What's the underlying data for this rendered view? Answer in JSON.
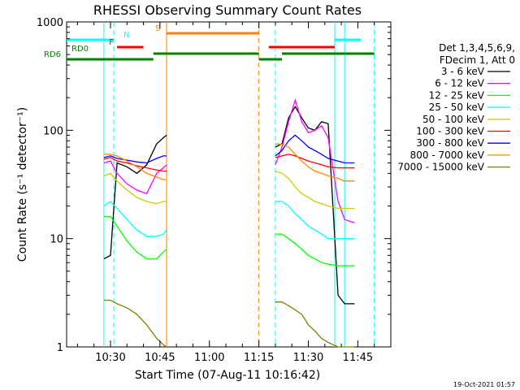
{
  "chart_data": {
    "type": "line",
    "title": "RHESSI Observing Summary Count Rates",
    "xlabel": "Start Time (07-Aug-11 10:16:42)",
    "ylabel": "Count Rate (s⁻¹ detector⁻¹)",
    "y_scale": "log",
    "ylim": [
      1,
      1000
    ],
    "xlim": [
      "10:16:42",
      "11:55:00"
    ],
    "x_ticks": [
      "10:30",
      "10:45",
      "11:00",
      "11:15",
      "11:30",
      "11:45"
    ],
    "y_ticks": [
      "1",
      "10",
      "100",
      "1000"
    ],
    "grid": false,
    "legend_position": "right",
    "legend_header": [
      "Det 1,3,4,5,6,9,",
      "FDecim 1, Att 0"
    ],
    "footer_date": "19-Oct-2021 01:57",
    "series": [
      {
        "name": "3 - 6 keV",
        "color": "#000000",
        "x": [
          "10:28",
          "10:30",
          "10:32",
          "10:35",
          "10:38",
          "10:41",
          "10:44",
          "10:46",
          "10:47",
          "11:20",
          "11:22",
          "11:24",
          "11:26",
          "11:28",
          "11:30",
          "11:32",
          "11:34",
          "11:36",
          "11:39",
          "11:41",
          "11:44"
        ],
        "y": [
          6.5,
          7,
          50,
          46,
          40,
          48,
          75,
          85,
          90,
          70,
          75,
          130,
          165,
          130,
          105,
          100,
          120,
          115,
          3.0,
          2.5,
          2.5
        ]
      },
      {
        "name": "6 - 12 keV",
        "color": "#ff00ff",
        "x": [
          "10:28",
          "10:30",
          "10:32",
          "10:35",
          "10:38",
          "10:41",
          "10:44",
          "10:46",
          "10:47",
          "11:20",
          "11:22",
          "11:24",
          "11:26",
          "11:28",
          "11:30",
          "11:32",
          "11:34",
          "11:36",
          "11:39",
          "11:41",
          "11:44"
        ],
        "y": [
          50,
          52,
          40,
          32,
          28,
          26,
          40,
          45,
          48,
          48,
          70,
          120,
          190,
          120,
          95,
          100,
          110,
          85,
          22,
          15,
          14
        ]
      },
      {
        "name": "12 - 25 keV",
        "color": "#00ff00",
        "x": [
          "10:28",
          "10:30",
          "10:32",
          "10:35",
          "10:38",
          "10:41",
          "10:44",
          "10:46",
          "10:47",
          "11:20",
          "11:22",
          "11:24",
          "11:26",
          "11:28",
          "11:30",
          "11:32",
          "11:34",
          "11:36",
          "11:39",
          "11:41",
          "11:44"
        ],
        "y": [
          16,
          16,
          13,
          9.5,
          7.5,
          6.5,
          6.5,
          7.5,
          8,
          11,
          11,
          10,
          9,
          8,
          7,
          6.5,
          6,
          5.8,
          5.6,
          5.6,
          5.6
        ]
      },
      {
        "name": "25 - 50 keV",
        "color": "#00ffff",
        "x": [
          "10:28",
          "10:30",
          "10:32",
          "10:35",
          "10:38",
          "10:41",
          "10:44",
          "10:46",
          "10:47",
          "11:20",
          "11:22",
          "11:24",
          "11:26",
          "11:28",
          "11:30",
          "11:32",
          "11:34",
          "11:36",
          "11:39",
          "11:41",
          "11:44"
        ],
        "y": [
          20,
          22,
          19,
          15,
          12,
          10.5,
          10.5,
          11,
          12,
          22,
          22,
          20,
          17,
          15,
          13,
          12,
          11,
          10,
          10,
          10,
          10
        ]
      },
      {
        "name": "50 - 100 keV",
        "color": "#cccc00",
        "x": [
          "10:28",
          "10:30",
          "10:32",
          "10:35",
          "10:38",
          "10:41",
          "10:44",
          "10:46",
          "10:47",
          "11:20",
          "11:22",
          "11:24",
          "11:26",
          "11:28",
          "11:30",
          "11:32",
          "11:34",
          "11:36",
          "11:39",
          "11:41",
          "11:44"
        ],
        "y": [
          38,
          40,
          34,
          28,
          24,
          22,
          21,
          22,
          22,
          42,
          40,
          36,
          30,
          26,
          24,
          22,
          21,
          20,
          19,
          19,
          19
        ]
      },
      {
        "name": "100 - 300 keV",
        "color": "#ff0000",
        "x": [
          "10:28",
          "10:30",
          "10:32",
          "10:35",
          "10:38",
          "10:41",
          "10:44",
          "10:46",
          "10:47",
          "11:20",
          "11:22",
          "11:24",
          "11:26",
          "11:28",
          "11:30",
          "11:32",
          "11:34",
          "11:36",
          "11:39",
          "11:41",
          "11:44"
        ],
        "y": [
          54,
          56,
          52,
          50,
          47,
          45,
          43,
          42,
          42,
          56,
          58,
          60,
          58,
          55,
          52,
          50,
          48,
          46,
          45,
          45,
          45
        ]
      },
      {
        "name": "300 - 800 keV",
        "color": "#0000ff",
        "x": [
          "10:28",
          "10:30",
          "10:32",
          "10:35",
          "10:38",
          "10:41",
          "10:44",
          "10:46",
          "10:47",
          "11:20",
          "11:22",
          "11:24",
          "11:26",
          "11:28",
          "11:30",
          "11:32",
          "11:34",
          "11:36",
          "11:39",
          "11:41",
          "11:44"
        ],
        "y": [
          56,
          58,
          55,
          53,
          51,
          50,
          55,
          58,
          58,
          58,
          65,
          80,
          90,
          80,
          70,
          65,
          60,
          55,
          52,
          50,
          50
        ]
      },
      {
        "name": "800 - 7000 keV",
        "color": "#ff8800",
        "x": [
          "10:28",
          "10:30",
          "10:32",
          "10:35",
          "10:38",
          "10:41",
          "10:44",
          "10:46",
          "10:47",
          "11:20",
          "11:22",
          "11:24",
          "11:26",
          "11:28",
          "11:30",
          "11:32",
          "11:34",
          "11:36",
          "11:39",
          "11:41",
          "11:44"
        ],
        "y": [
          60,
          60,
          58,
          52,
          46,
          40,
          37,
          35,
          35,
          75,
          74,
          70,
          60,
          52,
          46,
          42,
          40,
          38,
          36,
          34,
          34
        ]
      },
      {
        "name": "7000 - 15000 keV",
        "color": "#808000",
        "x": [
          "10:28",
          "10:30",
          "10:32",
          "10:35",
          "10:38",
          "10:41",
          "10:44",
          "10:46",
          "10:47",
          "11:20",
          "11:22",
          "11:24",
          "11:26",
          "11:28",
          "11:30",
          "11:32",
          "11:34",
          "11:36",
          "11:39",
          "11:41",
          "11:44"
        ],
        "y": [
          2.7,
          2.7,
          2.5,
          2.3,
          2.0,
          1.6,
          1.2,
          1.05,
          1.0,
          2.6,
          2.6,
          2.4,
          2.2,
          2.0,
          1.6,
          1.4,
          1.2,
          1.1,
          1.0,
          1.0,
          1.0
        ]
      }
    ],
    "flag_bars": [
      {
        "label": "N",
        "color": "#00ffff",
        "row": 1,
        "segments": [
          [
            "10:16:42",
            "10:31"
          ],
          [
            "11:38",
            "11:46"
          ]
        ]
      },
      {
        "label": "S",
        "color": "#ff8000",
        "row": 0,
        "segments": [
          [
            "10:47",
            "11:15"
          ]
        ]
      },
      {
        "label": "F",
        "color": "#ff0000",
        "row": 2,
        "segments": [
          [
            "10:32",
            "10:40"
          ],
          [
            "11:18",
            "11:38"
          ]
        ]
      },
      {
        "label": "RD0",
        "color": "#008000",
        "row": 3,
        "segments": [
          [
            "10:16:42",
            "10:16:42"
          ],
          [
            "10:43",
            "11:15"
          ],
          [
            "11:22",
            "11:50"
          ]
        ]
      },
      {
        "label": "RD6",
        "color": "#008000",
        "row": 4,
        "segments": [
          [
            "10:16:42",
            "10:43"
          ],
          [
            "11:15",
            "11:22"
          ]
        ]
      }
    ],
    "vertical_markers": [
      {
        "time": "10:28",
        "color": "#00ffff",
        "style": "solid"
      },
      {
        "time": "10:31",
        "color": "#00ffff",
        "style": "dashed"
      },
      {
        "time": "10:47",
        "color": "#ff8000",
        "style": "solid"
      },
      {
        "time": "11:15",
        "color": "#ff8000",
        "style": "dashed"
      },
      {
        "time": "11:20",
        "color": "#00ffff",
        "style": "dashed"
      },
      {
        "time": "11:38",
        "color": "#00ffff",
        "style": "solid"
      },
      {
        "time": "11:41",
        "color": "#00ffff",
        "style": "solid"
      },
      {
        "time": "11:50",
        "color": "#00ffff",
        "style": "dashed"
      }
    ]
  }
}
